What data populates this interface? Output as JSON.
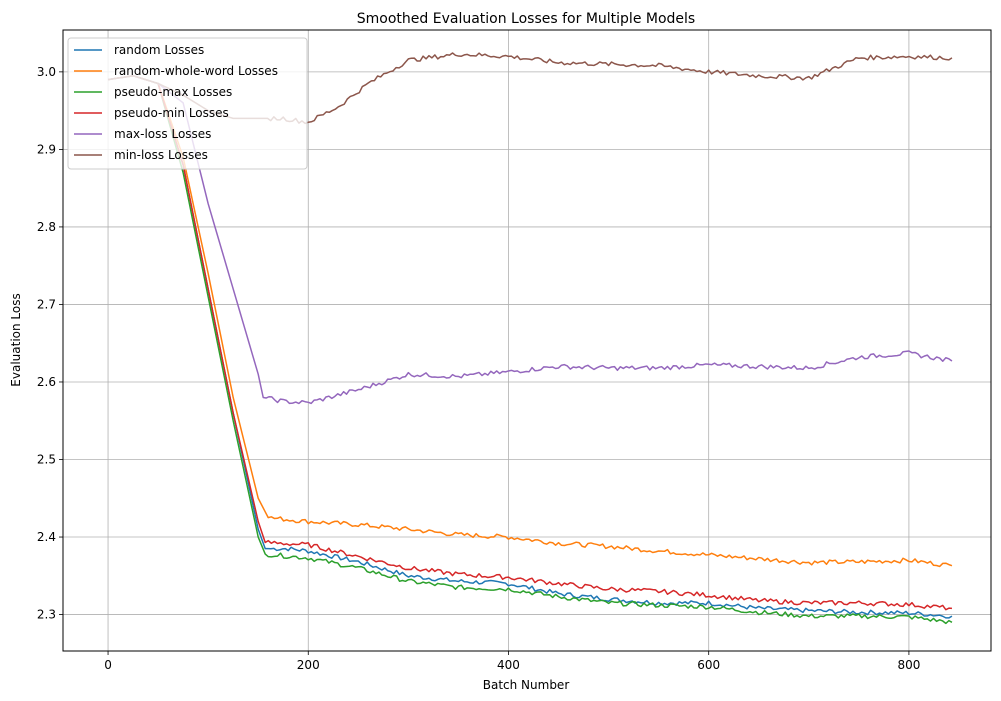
{
  "chart_data": {
    "type": "line",
    "title": "Smoothed Evaluation Losses for Multiple Models",
    "xlabel": "Batch Number",
    "ylabel": "Evaluation Loss",
    "xlim": [
      -45,
      882
    ],
    "ylim": [
      2.253,
      3.054
    ],
    "x_ticks": [
      0,
      200,
      400,
      600,
      800
    ],
    "y_ticks": [
      2.3,
      2.4,
      2.5,
      2.6,
      2.7,
      2.8,
      2.9,
      3.0
    ],
    "x_tick_labels": [
      "0",
      "200",
      "400",
      "600",
      "800"
    ],
    "y_tick_labels": [
      "2.3",
      "2.4",
      "2.5",
      "2.6",
      "2.7",
      "2.8",
      "2.9",
      "3.0"
    ],
    "grid": true,
    "legend_position": "top-left",
    "series": [
      {
        "name": "random Losses",
        "color": "#1f77b4",
        "points": [
          [
            0,
            2.99
          ],
          [
            25,
            2.995
          ],
          [
            50,
            2.985
          ],
          [
            75,
            2.88
          ],
          [
            100,
            2.72
          ],
          [
            125,
            2.56
          ],
          [
            150,
            2.41
          ],
          [
            157,
            2.385
          ],
          [
            180,
            2.385
          ],
          [
            200,
            2.382
          ],
          [
            250,
            2.368
          ],
          [
            300,
            2.35
          ],
          [
            350,
            2.343
          ],
          [
            400,
            2.34
          ],
          [
            450,
            2.327
          ],
          [
            500,
            2.32
          ],
          [
            550,
            2.315
          ],
          [
            600,
            2.315
          ],
          [
            650,
            2.308
          ],
          [
            700,
            2.305
          ],
          [
            750,
            2.303
          ],
          [
            800,
            2.302
          ],
          [
            843,
            2.298
          ]
        ]
      },
      {
        "name": "random-whole-word Losses",
        "color": "#ff7f0e",
        "points": [
          [
            0,
            2.99
          ],
          [
            25,
            2.995
          ],
          [
            50,
            2.985
          ],
          [
            75,
            2.89
          ],
          [
            100,
            2.74
          ],
          [
            125,
            2.58
          ],
          [
            150,
            2.45
          ],
          [
            160,
            2.425
          ],
          [
            200,
            2.42
          ],
          [
            250,
            2.416
          ],
          [
            300,
            2.41
          ],
          [
            350,
            2.403
          ],
          [
            400,
            2.4
          ],
          [
            450,
            2.392
          ],
          [
            500,
            2.388
          ],
          [
            550,
            2.382
          ],
          [
            600,
            2.377
          ],
          [
            650,
            2.372
          ],
          [
            700,
            2.367
          ],
          [
            750,
            2.368
          ],
          [
            800,
            2.37
          ],
          [
            843,
            2.363
          ]
        ]
      },
      {
        "name": "pseudo-max Losses",
        "color": "#2ca02c",
        "points": [
          [
            0,
            2.99
          ],
          [
            25,
            2.995
          ],
          [
            50,
            2.985
          ],
          [
            75,
            2.87
          ],
          [
            100,
            2.71
          ],
          [
            125,
            2.55
          ],
          [
            150,
            2.4
          ],
          [
            157,
            2.378
          ],
          [
            200,
            2.373
          ],
          [
            250,
            2.36
          ],
          [
            300,
            2.343
          ],
          [
            350,
            2.335
          ],
          [
            400,
            2.333
          ],
          [
            450,
            2.323
          ],
          [
            500,
            2.315
          ],
          [
            550,
            2.312
          ],
          [
            600,
            2.31
          ],
          [
            650,
            2.303
          ],
          [
            700,
            2.298
          ],
          [
            750,
            2.298
          ],
          [
            800,
            2.297
          ],
          [
            843,
            2.29
          ]
        ]
      },
      {
        "name": "pseudo-min Losses",
        "color": "#d62728",
        "points": [
          [
            0,
            2.99
          ],
          [
            25,
            2.995
          ],
          [
            50,
            2.985
          ],
          [
            75,
            2.88
          ],
          [
            100,
            2.72
          ],
          [
            125,
            2.56
          ],
          [
            150,
            2.42
          ],
          [
            157,
            2.393
          ],
          [
            200,
            2.39
          ],
          [
            250,
            2.375
          ],
          [
            300,
            2.36
          ],
          [
            350,
            2.352
          ],
          [
            400,
            2.348
          ],
          [
            450,
            2.34
          ],
          [
            500,
            2.333
          ],
          [
            550,
            2.33
          ],
          [
            600,
            2.325
          ],
          [
            650,
            2.318
          ],
          [
            700,
            2.315
          ],
          [
            750,
            2.315
          ],
          [
            800,
            2.313
          ],
          [
            843,
            2.308
          ]
        ]
      },
      {
        "name": "max-loss Losses",
        "color": "#9467bd",
        "points": [
          [
            0,
            2.99
          ],
          [
            25,
            2.995
          ],
          [
            50,
            2.985
          ],
          [
            75,
            2.96
          ],
          [
            100,
            2.83
          ],
          [
            125,
            2.72
          ],
          [
            150,
            2.61
          ],
          [
            155,
            2.58
          ],
          [
            175,
            2.575
          ],
          [
            200,
            2.573
          ],
          [
            250,
            2.59
          ],
          [
            300,
            2.61
          ],
          [
            350,
            2.607
          ],
          [
            400,
            2.613
          ],
          [
            450,
            2.62
          ],
          [
            500,
            2.618
          ],
          [
            550,
            2.618
          ],
          [
            600,
            2.622
          ],
          [
            650,
            2.62
          ],
          [
            700,
            2.618
          ],
          [
            750,
            2.632
          ],
          [
            800,
            2.637
          ],
          [
            843,
            2.627
          ]
        ]
      },
      {
        "name": "min-loss Losses",
        "color": "#8c564b",
        "points": [
          [
            0,
            2.99
          ],
          [
            25,
            2.995
          ],
          [
            50,
            2.985
          ],
          [
            75,
            2.97
          ],
          [
            100,
            2.95
          ],
          [
            125,
            2.94
          ],
          [
            150,
            2.94
          ],
          [
            175,
            2.94
          ],
          [
            200,
            2.935
          ],
          [
            230,
            2.955
          ],
          [
            260,
            2.985
          ],
          [
            300,
            3.015
          ],
          [
            350,
            3.023
          ],
          [
            400,
            3.02
          ],
          [
            450,
            3.012
          ],
          [
            500,
            3.01
          ],
          [
            550,
            3.008
          ],
          [
            600,
            3.0
          ],
          [
            650,
            2.995
          ],
          [
            700,
            2.992
          ],
          [
            750,
            3.018
          ],
          [
            800,
            3.02
          ],
          [
            843,
            3.018
          ]
        ]
      }
    ]
  }
}
